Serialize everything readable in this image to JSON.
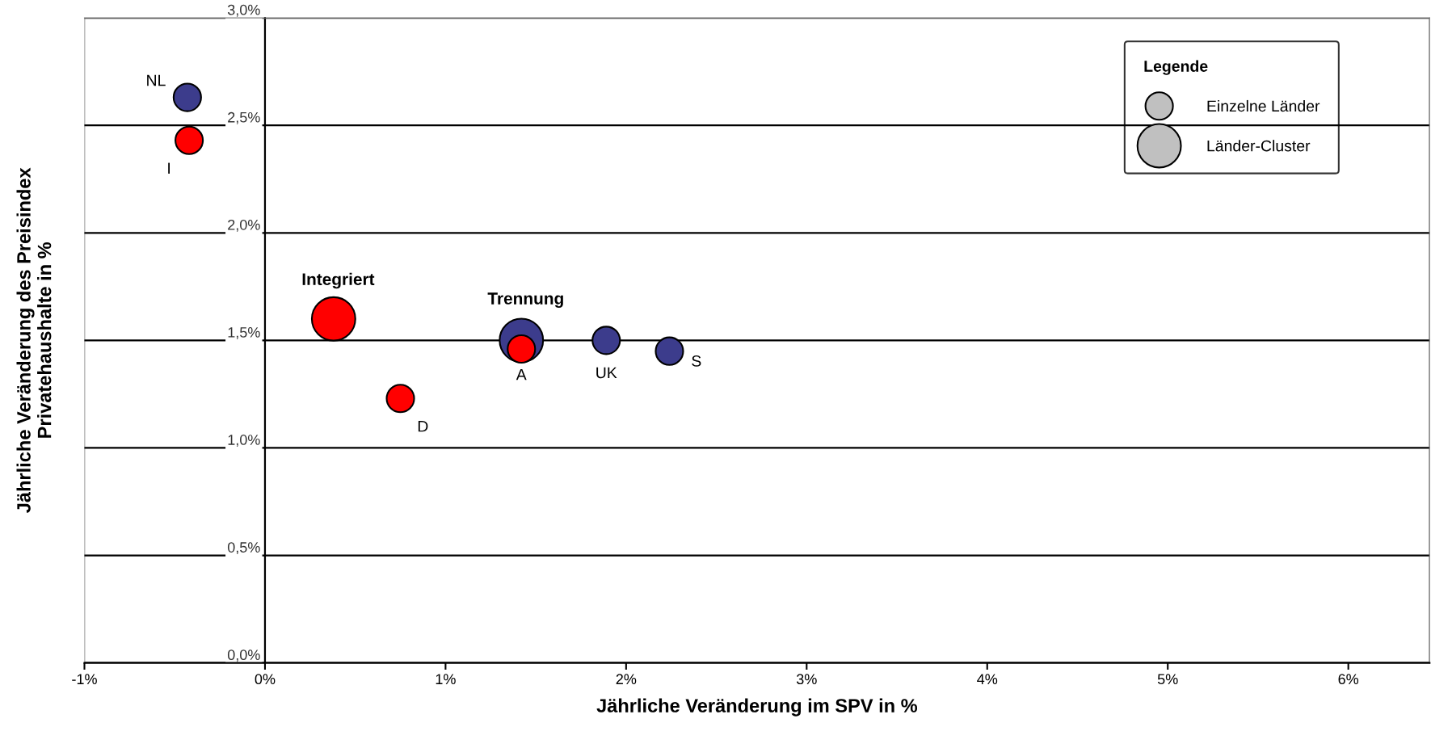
{
  "chart_data": {
    "type": "bubble",
    "xlabel": "Jährliche Veränderung im SPV in %",
    "ylabel": "Jährliche Veränderung des Preisindex\nPrivatehaushalte in %",
    "legend_title": "Legende",
    "series": [
      {
        "color": "#3c3c8c",
        "x": [
          -0.43,
          1.42,
          1.89,
          2.24
        ],
        "values": [
          2.63,
          1.5,
          1.5,
          1.45
        ],
        "sizes": [
          0.4,
          1,
          0.4,
          0.4
        ]
      },
      {
        "color": "#ff0000",
        "x": [
          -0.42,
          0.38,
          0.75,
          1.42
        ],
        "values": [
          2.43,
          1.6,
          1.23,
          1.46
        ],
        "sizes": [
          0.4,
          1,
          0.4,
          0.4
        ]
      }
    ],
    "size_legend": [
      {
        "value": 0.4,
        "label": "Einzelne Länder"
      },
      {
        "value": 1,
        "label": "Länder-Cluster"
      }
    ],
    "annotations": [
      {
        "text": "NL",
        "x": -0.43,
        "y": 2.63
      },
      {
        "text": "I",
        "x": -0.42,
        "y": 2.43
      },
      {
        "text": "Integriert",
        "x": 0.38,
        "y": 1.6
      },
      {
        "text": "D",
        "x": 0.75,
        "y": 1.23
      },
      {
        "text": "Trennung",
        "x": 1.42,
        "y": 1.5
      },
      {
        "text": "A",
        "x": 1.42,
        "y": 1.46
      },
      {
        "text": "UK",
        "x": 1.89,
        "y": 1.5
      },
      {
        "text": "S",
        "x": 2.24,
        "y": 1.45
      }
    ],
    "xlim": [
      -1,
      6.45
    ],
    "xticks": [
      {
        "value": -1,
        "label": "-1%"
      },
      {
        "value": 0,
        "label": "0%"
      },
      {
        "value": 1,
        "label": "1%"
      },
      {
        "value": 2,
        "label": "2%"
      },
      {
        "value": 3,
        "label": "3%"
      },
      {
        "value": 4,
        "label": "4%"
      },
      {
        "value": 5,
        "label": "5%"
      },
      {
        "value": 6,
        "label": "6%"
      }
    ],
    "ylim": [
      0,
      3
    ],
    "yticks": [
      {
        "value": 0,
        "label": "0,0%"
      },
      {
        "value": 0.5,
        "label": "0,5%"
      },
      {
        "value": 1,
        "label": "1,0%"
      },
      {
        "value": 1.5,
        "label": "1,5%"
      },
      {
        "value": 2,
        "label": "2,0%"
      },
      {
        "value": 2.5,
        "label": "2,5%"
      },
      {
        "value": 3,
        "label": "3,0%"
      }
    ],
    "grid": "y"
  }
}
